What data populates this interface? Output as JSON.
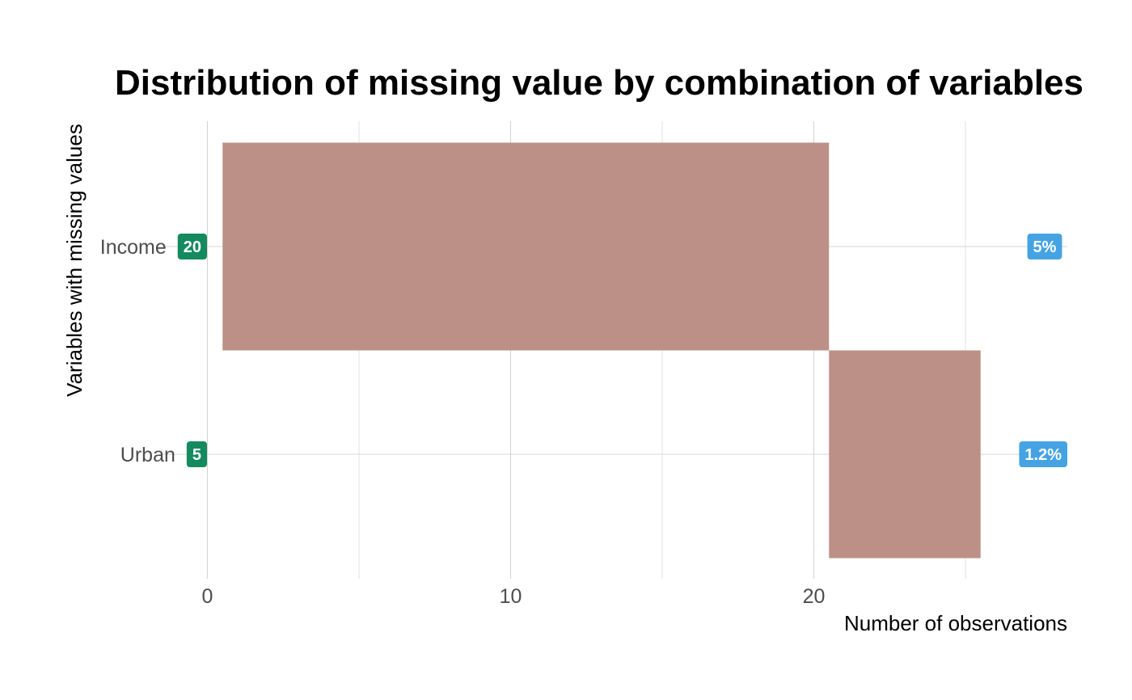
{
  "chart_data": {
    "type": "bar",
    "title": "Distribution of missing value by combination of variables",
    "xlabel": "Number of observations",
    "ylabel": "Variables with missing values",
    "xlim": [
      -0.5,
      28.5
    ],
    "x_ticks": [
      0,
      10,
      20
    ],
    "x_minor_ticks": [
      5,
      15,
      25
    ],
    "grid": true,
    "categories": [
      "Income",
      "Urban"
    ],
    "values": [
      20,
      5
    ],
    "count_labels": [
      "20",
      "5"
    ],
    "percent_labels": [
      "5%",
      "1.2%"
    ],
    "bar_color": "#bc9087",
    "count_badge_color": "#148a5e",
    "percent_badge_color": "#45a3e3"
  }
}
